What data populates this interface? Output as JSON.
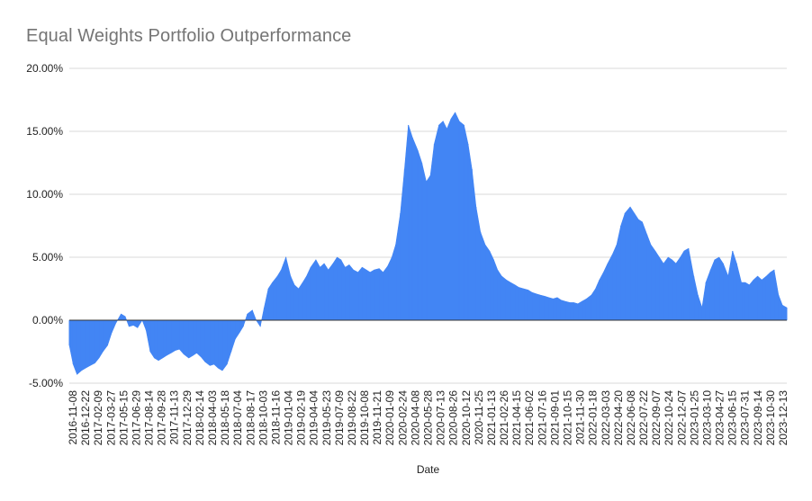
{
  "chart_data": {
    "type": "area",
    "title": "Equal Weights Portfolio Outperformance",
    "xlabel": "Date",
    "ylabel": "",
    "ylim": [
      -0.05,
      0.2
    ],
    "y_ticks": [
      "-5.00%",
      "0.00%",
      "5.00%",
      "10.00%",
      "15.00%",
      "20.00%"
    ],
    "y_tick_values": [
      -0.05,
      0,
      0.05,
      0.1,
      0.15,
      0.2
    ],
    "grid": true,
    "legend": "none",
    "x_ticks": [
      "2016-11-08",
      "2016-12-22",
      "2017-02-09",
      "2017-03-27",
      "2017-05-15",
      "2017-06-29",
      "2017-08-14",
      "2017-09-28",
      "2017-11-13",
      "2017-12-29",
      "2018-02-14",
      "2018-04-03",
      "2018-05-18",
      "2018-07-04",
      "2018-08-17",
      "2018-10-03",
      "2018-11-16",
      "2019-01-04",
      "2019-02-19",
      "2019-04-04",
      "2019-05-23",
      "2019-07-09",
      "2019-08-22",
      "2019-10-08",
      "2019-11-21",
      "2020-01-09",
      "2020-02-24",
      "2020-04-08",
      "2020-05-28",
      "2020-07-13",
      "2020-08-26",
      "2020-10-12",
      "2020-11-25",
      "2021-01-13",
      "2021-02-26",
      "2021-04-15",
      "2021-06-02",
      "2021-07-16",
      "2021-09-01",
      "2021-10-15",
      "2021-11-30",
      "2022-01-18",
      "2022-03-03",
      "2022-04-20",
      "2022-06-08",
      "2022-07-22",
      "2022-09-07",
      "2022-10-24",
      "2022-12-07",
      "2023-01-25",
      "2023-03-10",
      "2023-04-27",
      "2023-06-15",
      "2023-07-31",
      "2023-09-14",
      "2023-10-30",
      "2023-12-13"
    ],
    "series": [
      {
        "name": "",
        "color": "#4285f4",
        "x": [
          "2016-11-08",
          "2016-11-22",
          "2016-12-06",
          "2016-12-22",
          "2017-01-06",
          "2017-01-23",
          "2017-02-09",
          "2017-02-24",
          "2017-03-10",
          "2017-03-27",
          "2017-04-11",
          "2017-04-27",
          "2017-05-15",
          "2017-05-30",
          "2017-06-13",
          "2017-06-29",
          "2017-07-14",
          "2017-07-31",
          "2017-08-14",
          "2017-08-29",
          "2017-09-13",
          "2017-09-28",
          "2017-10-13",
          "2017-10-27",
          "2017-11-13",
          "2017-11-28",
          "2017-12-13",
          "2017-12-29",
          "2018-01-16",
          "2018-01-31",
          "2018-02-14",
          "2018-03-01",
          "2018-03-16",
          "2018-04-03",
          "2018-04-18",
          "2018-05-03",
          "2018-05-18",
          "2018-06-04",
          "2018-06-19",
          "2018-07-04",
          "2018-07-19",
          "2018-08-02",
          "2018-08-17",
          "2018-09-04",
          "2018-09-18",
          "2018-10-03",
          "2018-10-17",
          "2018-11-01",
          "2018-11-16",
          "2018-12-04",
          "2018-12-18",
          "2019-01-04",
          "2019-01-21",
          "2019-02-04",
          "2019-02-19",
          "2019-03-06",
          "2019-03-20",
          "2019-04-04",
          "2019-04-23",
          "2019-05-08",
          "2019-05-23",
          "2019-06-07",
          "2019-06-24",
          "2019-07-09",
          "2019-07-23",
          "2019-08-07",
          "2019-08-22",
          "2019-09-06",
          "2019-09-23",
          "2019-10-08",
          "2019-10-23",
          "2019-11-06",
          "2019-11-21",
          "2019-12-09",
          "2019-12-23",
          "2020-01-09",
          "2020-01-24",
          "2020-02-07",
          "2020-02-24",
          "2020-03-10",
          "2020-03-24",
          "2020-04-08",
          "2020-04-27",
          "2020-05-12",
          "2020-05-28",
          "2020-06-12",
          "2020-06-26",
          "2020-07-13",
          "2020-07-28",
          "2020-08-11",
          "2020-08-26",
          "2020-09-10",
          "2020-09-25",
          "2020-10-12",
          "2020-10-27",
          "2020-11-10",
          "2020-11-25",
          "2020-12-11",
          "2020-12-28",
          "2021-01-13",
          "2021-01-28",
          "2021-02-11",
          "2021-02-26",
          "2021-03-15",
          "2021-03-30",
          "2021-04-15",
          "2021-04-30",
          "2021-05-17",
          "2021-06-02",
          "2021-06-17",
          "2021-07-01",
          "2021-07-16",
          "2021-08-02",
          "2021-08-16",
          "2021-09-01",
          "2021-09-16",
          "2021-09-30",
          "2021-10-15",
          "2021-11-01",
          "2021-11-15",
          "2021-11-30",
          "2021-12-15",
          "2021-12-31",
          "2022-01-18",
          "2022-02-02",
          "2022-02-16",
          "2022-03-03",
          "2022-03-18",
          "2022-04-04",
          "2022-04-20",
          "2022-05-05",
          "2022-05-20",
          "2022-06-08",
          "2022-06-23",
          "2022-07-08",
          "2022-07-22",
          "2022-08-08",
          "2022-08-22",
          "2022-09-07",
          "2022-09-22",
          "2022-10-07",
          "2022-10-24",
          "2022-11-07",
          "2022-11-21",
          "2022-12-07",
          "2022-12-21",
          "2023-01-06",
          "2023-01-25",
          "2023-02-09",
          "2023-02-24",
          "2023-03-10",
          "2023-03-27",
          "2023-04-11",
          "2023-04-27",
          "2023-05-12",
          "2023-05-30",
          "2023-06-15",
          "2023-06-30",
          "2023-07-17",
          "2023-07-31",
          "2023-08-15",
          "2023-08-30",
          "2023-09-14",
          "2023-09-29",
          "2023-10-16",
          "2023-10-30",
          "2023-11-13",
          "2023-11-29",
          "2023-12-13",
          "2023-12-29"
        ],
        "values": [
          -0.02,
          -0.035,
          -0.043,
          -0.04,
          -0.038,
          -0.036,
          -0.034,
          -0.03,
          -0.025,
          -0.02,
          -0.01,
          -0.002,
          0.005,
          0.003,
          -0.005,
          -0.004,
          -0.006,
          0.0,
          -0.008,
          -0.025,
          -0.03,
          -0.032,
          -0.03,
          -0.028,
          -0.026,
          -0.024,
          -0.023,
          -0.027,
          -0.03,
          -0.028,
          -0.026,
          -0.029,
          -0.033,
          -0.036,
          -0.035,
          -0.038,
          -0.04,
          -0.035,
          -0.025,
          -0.015,
          -0.01,
          -0.005,
          0.005,
          0.008,
          0.0,
          -0.005,
          0.01,
          0.025,
          0.03,
          0.035,
          0.04,
          0.05,
          0.035,
          0.028,
          0.025,
          0.03,
          0.035,
          0.042,
          0.048,
          0.042,
          0.045,
          0.04,
          0.045,
          0.05,
          0.048,
          0.042,
          0.044,
          0.04,
          0.038,
          0.042,
          0.04,
          0.038,
          0.04,
          0.041,
          0.038,
          0.043,
          0.05,
          0.06,
          0.085,
          0.12,
          0.155,
          0.145,
          0.135,
          0.125,
          0.11,
          0.115,
          0.14,
          0.155,
          0.158,
          0.152,
          0.16,
          0.165,
          0.158,
          0.155,
          0.14,
          0.12,
          0.09,
          0.07,
          0.06,
          0.055,
          0.048,
          0.04,
          0.035,
          0.032,
          0.03,
          0.028,
          0.026,
          0.025,
          0.024,
          0.022,
          0.021,
          0.02,
          0.019,
          0.018,
          0.017,
          0.018,
          0.016,
          0.015,
          0.014,
          0.014,
          0.013,
          0.015,
          0.017,
          0.02,
          0.025,
          0.032,
          0.038,
          0.045,
          0.052,
          0.06,
          0.075,
          0.085,
          0.09,
          0.085,
          0.08,
          0.078,
          0.068,
          0.06,
          0.055,
          0.05,
          0.045,
          0.05,
          0.048,
          0.045,
          0.05,
          0.055,
          0.057,
          0.035,
          0.02,
          0.01,
          0.03,
          0.04,
          0.048,
          0.05,
          0.045,
          0.035,
          0.055,
          0.045,
          0.03,
          0.03,
          0.028,
          0.032,
          0.035,
          0.032,
          0.035,
          0.038,
          0.04,
          0.02,
          0.012,
          0.01
        ]
      }
    ]
  }
}
